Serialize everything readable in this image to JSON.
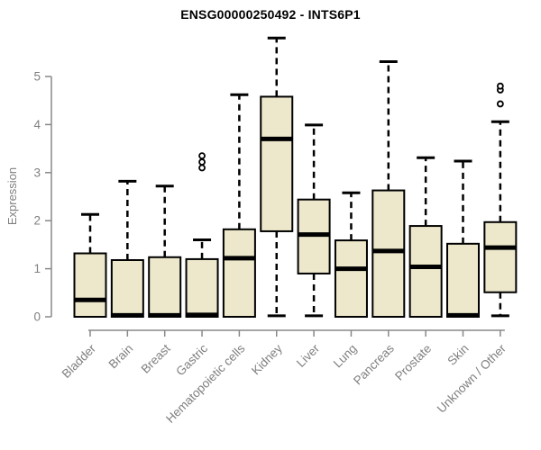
{
  "chart_data": {
    "type": "boxplot",
    "title": "ENSG00000250492 - INTS6P1",
    "ylabel": "Expression",
    "xlabel": "",
    "ylim": [
      0,
      5
    ],
    "yticks": [
      0,
      1,
      2,
      3,
      4,
      5
    ],
    "grid": false,
    "legend": "none",
    "categories": [
      "Bladder",
      "Brain",
      "Breast",
      "Gastric",
      "Hematopoietic cells",
      "Kidney",
      "Liver",
      "Lung",
      "Pancreas",
      "Prostate",
      "Skin",
      "Unknown / Other"
    ],
    "series": [
      {
        "name": "Bladder",
        "whisker_low": 0,
        "q1": 0,
        "median": 0.35,
        "q3": 1.32,
        "whisker_high": 2.13,
        "outliers": []
      },
      {
        "name": "Brain",
        "whisker_low": 0,
        "q1": 0,
        "median": 0.03,
        "q3": 1.18,
        "whisker_high": 2.82,
        "outliers": []
      },
      {
        "name": "Breast",
        "whisker_low": 0,
        "q1": 0,
        "median": 0.03,
        "q3": 1.24,
        "whisker_high": 2.72,
        "outliers": []
      },
      {
        "name": "Gastric",
        "whisker_low": 0,
        "q1": 0,
        "median": 0.04,
        "q3": 1.2,
        "whisker_high": 1.6,
        "outliers": [
          3.1,
          3.22,
          3.35
        ]
      },
      {
        "name": "Hematopoietic cells",
        "whisker_low": 0,
        "q1": 0,
        "median": 1.22,
        "q3": 1.82,
        "whisker_high": 4.62,
        "outliers": []
      },
      {
        "name": "Kidney",
        "whisker_low": 0.02,
        "q1": 1.78,
        "median": 3.7,
        "q3": 4.58,
        "whisker_high": 5.8,
        "outliers": []
      },
      {
        "name": "Liver",
        "whisker_low": 0.02,
        "q1": 0.9,
        "median": 1.71,
        "q3": 2.44,
        "whisker_high": 3.99,
        "outliers": []
      },
      {
        "name": "Lung",
        "whisker_low": 0,
        "q1": 0,
        "median": 1.0,
        "q3": 1.59,
        "whisker_high": 2.58,
        "outliers": []
      },
      {
        "name": "Pancreas",
        "whisker_low": 0,
        "q1": 0,
        "median": 1.37,
        "q3": 2.63,
        "whisker_high": 5.31,
        "outliers": []
      },
      {
        "name": "Prostate",
        "whisker_low": 0,
        "q1": 0,
        "median": 1.04,
        "q3": 1.89,
        "whisker_high": 3.31,
        "outliers": []
      },
      {
        "name": "Skin",
        "whisker_low": 0,
        "q1": 0,
        "median": 0.03,
        "q3": 1.52,
        "whisker_high": 3.24,
        "outliers": []
      },
      {
        "name": "Unknown / Other",
        "whisker_low": 0.02,
        "q1": 0.51,
        "median": 1.44,
        "q3": 1.97,
        "whisker_high": 4.06,
        "outliers": [
          4.43,
          4.72,
          4.8
        ]
      }
    ],
    "style": {
      "box_fill": "#EDE8CB",
      "box_border": "#000000",
      "median_color": "#000000",
      "whisker_color": "#000000",
      "outlier_stroke": "#000000",
      "axis_color": "#888888",
      "label_color": "#7F7F7F",
      "title_color": "#000000",
      "background": "#FFFFFF"
    }
  }
}
